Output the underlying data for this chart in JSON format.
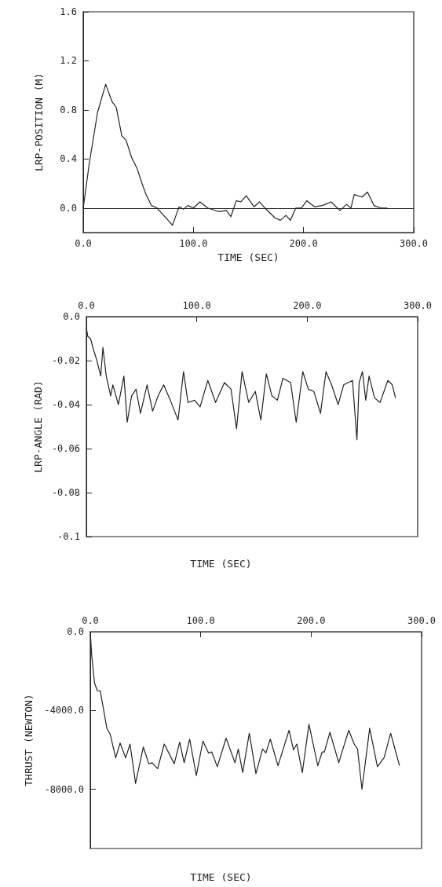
{
  "chart_data": [
    {
      "type": "line",
      "xlabel": "TIME (SEC)",
      "ylabel": "LRP-POSITION (M)",
      "xlim": [
        0,
        300
      ],
      "xticks": [
        {
          "value": 0,
          "label": "0.0"
        },
        {
          "value": 100,
          "label": "100.0"
        },
        {
          "value": 200,
          "label": "200.0"
        },
        {
          "value": 300,
          "label": "300.0"
        }
      ],
      "ylim": [
        -0.2,
        1.6
      ],
      "yticks": [
        {
          "value": 0,
          "label": "0.0"
        },
        0.4,
        0.8,
        1.2,
        1.6
      ],
      "grid": false,
      "marker": "none",
      "line_style": "solid",
      "ref_lines": [
        {
          "axis": "y",
          "value": 0
        }
      ],
      "series": [
        {
          "color": "#222222",
          "x": [
            0,
            5.6,
            13,
            20.4,
            26,
            30,
            35,
            39,
            44,
            49,
            53,
            57,
            62,
            67,
            74,
            81,
            84.6,
            87,
            91,
            95,
            100,
            106,
            113,
            123,
            130,
            134,
            139,
            143,
            148,
            155,
            160,
            165,
            174,
            179,
            184,
            188,
            193,
            198,
            203,
            210,
            217,
            225,
            233,
            239,
            243,
            246,
            253,
            258,
            264,
            270,
            276
          ],
          "values": [
            0,
            0.37,
            0.78,
            1.01,
            0.87,
            0.82,
            0.59,
            0.55,
            0.41,
            0.32,
            0.21,
            0.11,
            0.02,
            0,
            -0.07,
            -0.14,
            -0.05,
            0.01,
            -0.01,
            0.02,
            0,
            0.05,
            0,
            -0.03,
            -0.02,
            -0.07,
            0.06,
            0.05,
            0.1,
            0.01,
            0.05,
            0,
            -0.08,
            -0.1,
            -0.06,
            -0.1,
            0,
            0,
            0.06,
            0.01,
            0.02,
            0.05,
            -0.02,
            0.03,
            0,
            0.11,
            0.09,
            0.13,
            0.02,
            0,
            0
          ]
        }
      ]
    },
    {
      "type": "line",
      "xlabel": "TIME (SEC)",
      "ylabel": "LRP-ANGLE (RAD)",
      "xlim": [
        0,
        300
      ],
      "xticks": [
        {
          "value": 0,
          "label": "0.0"
        },
        {
          "value": 100,
          "label": "100.0"
        },
        {
          "value": 200,
          "label": "200.0"
        },
        {
          "value": 300,
          "label": "300.0"
        }
      ],
      "ylim": [
        -0.1,
        0
      ],
      "yticks": [
        {
          "value": 0,
          "label": "0.0"
        },
        -0.02,
        -0.04,
        -0.06,
        -0.08,
        -0.1
      ],
      "grid": false,
      "marker": "none",
      "line_style": "solid",
      "series": [
        {
          "color": "#222222",
          "x": [
            0,
            1.3,
            3.8,
            6.4,
            9,
            13,
            15,
            18,
            22,
            24,
            29,
            34,
            37,
            41,
            45,
            49,
            55,
            60,
            65,
            70,
            76,
            83,
            88,
            92,
            98,
            103,
            110,
            117,
            125,
            131,
            136,
            141,
            147,
            153,
            158,
            163,
            168,
            173,
            178,
            185,
            190,
            196,
            201,
            206,
            212,
            217,
            222,
            228,
            233,
            241,
            245,
            247,
            250,
            253,
            256,
            261,
            266,
            273,
            277,
            280
          ],
          "values": [
            -0.005,
            -0.009,
            -0.01,
            -0.015,
            -0.019,
            -0.027,
            -0.014,
            -0.027,
            -0.036,
            -0.031,
            -0.04,
            -0.027,
            -0.048,
            -0.036,
            -0.033,
            -0.044,
            -0.031,
            -0.043,
            -0.036,
            -0.031,
            -0.038,
            -0.047,
            -0.025,
            -0.039,
            -0.038,
            -0.041,
            -0.029,
            -0.039,
            -0.03,
            -0.033,
            -0.051,
            -0.025,
            -0.039,
            -0.034,
            -0.047,
            -0.026,
            -0.036,
            -0.038,
            -0.028,
            -0.03,
            -0.048,
            -0.025,
            -0.033,
            -0.034,
            -0.044,
            -0.025,
            -0.031,
            -0.04,
            -0.031,
            -0.029,
            -0.056,
            -0.03,
            -0.025,
            -0.038,
            -0.027,
            -0.037,
            -0.039,
            -0.029,
            -0.031,
            -0.037
          ]
        }
      ]
    },
    {
      "type": "line",
      "xlabel": "TIME (SEC)",
      "ylabel": "THRUST (NEWTON)",
      "xlim": [
        0,
        300
      ],
      "xticks": [
        {
          "value": 0,
          "label": "0.0"
        },
        {
          "value": 100,
          "label": "100.0"
        },
        {
          "value": 200,
          "label": "200.0"
        },
        {
          "value": 300,
          "label": "300.0"
        }
      ],
      "ylim": [
        -11000,
        0
      ],
      "yticks": [
        {
          "value": 0,
          "label": "0.0"
        },
        {
          "value": -4000,
          "label": "-4000.0"
        },
        {
          "value": -8000,
          "label": "-8000.0"
        }
      ],
      "grid": false,
      "marker": "none",
      "line_style": "solid",
      "series": [
        {
          "color": "#222222",
          "x": [
            0,
            1.3,
            3.8,
            6.4,
            9,
            11.4,
            15,
            18,
            23,
            27,
            32,
            36,
            41,
            48,
            53,
            56,
            61,
            67,
            76,
            81,
            85,
            90,
            96,
            102,
            107,
            110,
            115,
            123,
            131,
            134,
            138,
            144,
            150,
            156,
            159,
            163,
            170,
            180,
            184,
            187,
            192,
            198,
            206,
            210,
            212,
            217,
            225,
            234,
            239,
            242,
            246,
            253,
            260,
            266,
            272,
            280
          ],
          "values": [
            0,
            -1200,
            -2600,
            -3000,
            -3000,
            -3750,
            -4900,
            -5200,
            -6400,
            -5650,
            -6400,
            -5700,
            -7700,
            -5850,
            -6700,
            -6650,
            -6950,
            -5700,
            -6700,
            -5600,
            -6650,
            -5450,
            -7300,
            -5550,
            -6150,
            -6100,
            -6850,
            -5400,
            -6650,
            -5950,
            -7150,
            -5150,
            -7200,
            -5950,
            -6150,
            -5450,
            -6800,
            -5000,
            -6000,
            -5700,
            -7150,
            -4700,
            -6800,
            -6100,
            -6100,
            -5100,
            -6650,
            -5000,
            -5700,
            -5950,
            -8000,
            -4900,
            -6850,
            -6400,
            -5150,
            -6800
          ]
        }
      ]
    }
  ]
}
